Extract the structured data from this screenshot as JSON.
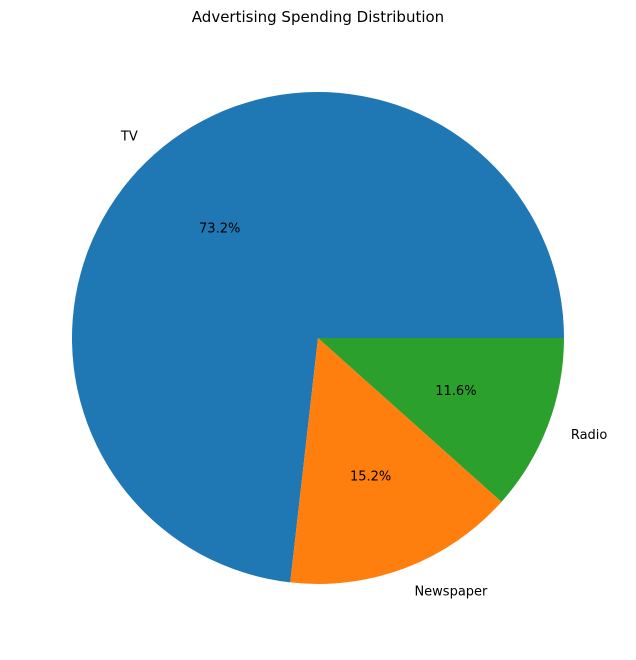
{
  "chart_data": {
    "type": "pie",
    "title": "Advertising Spending Distribution",
    "slices": [
      {
        "label": "TV",
        "value": 73.2,
        "pct_label": "73.2%",
        "color": "#1f77b4"
      },
      {
        "label": "Newspaper",
        "value": 15.2,
        "pct_label": "15.2%",
        "color": "#ff7f0e"
      },
      {
        "label": "Radio",
        "value": 11.6,
        "pct_label": "11.6%",
        "color": "#2ca02c"
      }
    ],
    "start_angle_deg": 0,
    "direction": "counterclockwise",
    "legend": "none"
  }
}
